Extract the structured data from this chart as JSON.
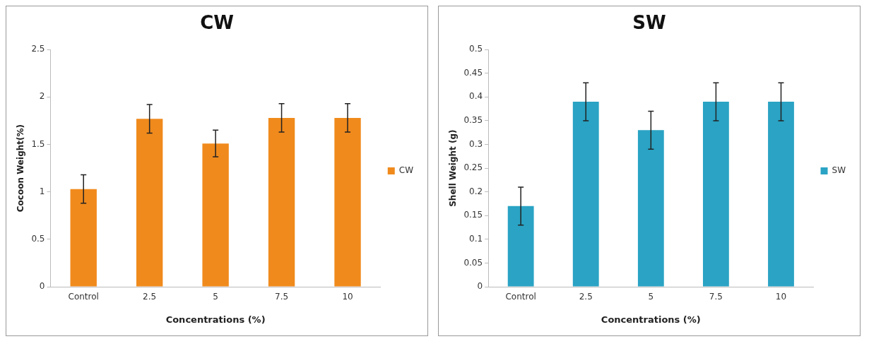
{
  "chart_data": [
    {
      "type": "bar",
      "title": "CW",
      "xlabel": "Concentrations (%)",
      "ylabel": "Cocoon Weight(%)",
      "categories": [
        "Control",
        "2.5",
        "5",
        "7.5",
        "10"
      ],
      "series": [
        {
          "name": "CW",
          "color": "#f08a1c",
          "values": [
            1.03,
            1.77,
            1.51,
            1.78,
            1.78
          ],
          "errors": [
            0.15,
            0.15,
            0.14,
            0.15,
            0.15
          ]
        }
      ],
      "ylim": [
        0,
        2.5
      ],
      "yticks": [
        0,
        0.5,
        1,
        1.5,
        2,
        2.5
      ],
      "grid": false,
      "legend": "right"
    },
    {
      "type": "bar",
      "title": "SW",
      "xlabel": "Concentrations (%)",
      "ylabel": "Shell Weight (g)",
      "categories": [
        "Control",
        "2.5",
        "5",
        "7.5",
        "10"
      ],
      "series": [
        {
          "name": "SW",
          "color": "#2aa3c4",
          "values": [
            0.17,
            0.39,
            0.33,
            0.39,
            0.39
          ],
          "errors": [
            0.04,
            0.04,
            0.04,
            0.04,
            0.04
          ]
        }
      ],
      "ylim": [
        0,
        0.5
      ],
      "yticks": [
        0,
        0.05,
        0.1,
        0.15,
        0.2,
        0.25,
        0.3,
        0.35,
        0.4,
        0.45,
        0.5
      ],
      "grid": false,
      "legend": "right"
    }
  ]
}
